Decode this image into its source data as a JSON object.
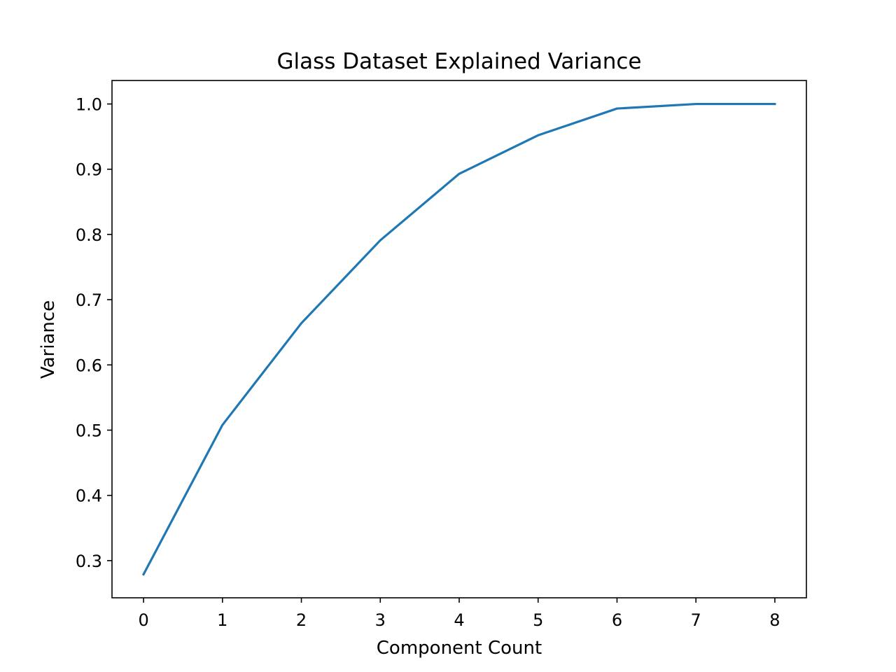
{
  "chart_data": {
    "type": "line",
    "title": "Glass Dataset Explained Variance",
    "xlabel": "Component Count",
    "ylabel": "Variance",
    "x": [
      0,
      1,
      2,
      3,
      4,
      5,
      6,
      7,
      8
    ],
    "series": [
      {
        "values": [
          0.279,
          0.508,
          0.664,
          0.791,
          0.893,
          0.952,
          0.993,
          1.0,
          1.0
        ],
        "color": "#1f77b4"
      }
    ],
    "xticks": [
      "0",
      "1",
      "2",
      "3",
      "4",
      "5",
      "6",
      "7",
      "8"
    ],
    "yticks": [
      "0.3",
      "0.4",
      "0.5",
      "0.6",
      "0.7",
      "0.8",
      "0.9",
      "1.0"
    ],
    "xlim": [
      -0.4,
      8.4
    ],
    "ylim": [
      0.243,
      1.036
    ],
    "grid": false,
    "legend": "none"
  }
}
